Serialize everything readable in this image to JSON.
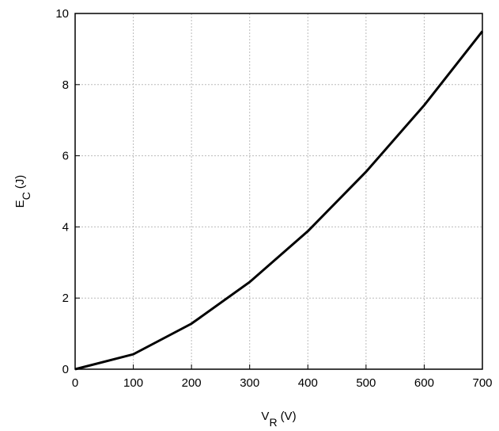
{
  "chart_data": {
    "type": "line",
    "y_label": {
      "main": "E",
      "sub": "C",
      "unit": "(J)"
    },
    "x_label": {
      "main": "V",
      "sub": "R",
      "unit": "(V)"
    },
    "x": [
      0,
      100,
      200,
      300,
      400,
      500,
      600,
      700
    ],
    "series": [
      {
        "color": "#000000",
        "values": [
          0,
          0.42,
          1.28,
          2.45,
          3.88,
          5.55,
          7.42,
          9.5
        ]
      }
    ],
    "xlim": [
      0,
      700
    ],
    "xticks": [
      0,
      100,
      200,
      300,
      400,
      500,
      600,
      700
    ],
    "ylim": [
      0,
      10
    ],
    "yticks": [
      0,
      2,
      4,
      6,
      8,
      10
    ],
    "grid": true
  }
}
